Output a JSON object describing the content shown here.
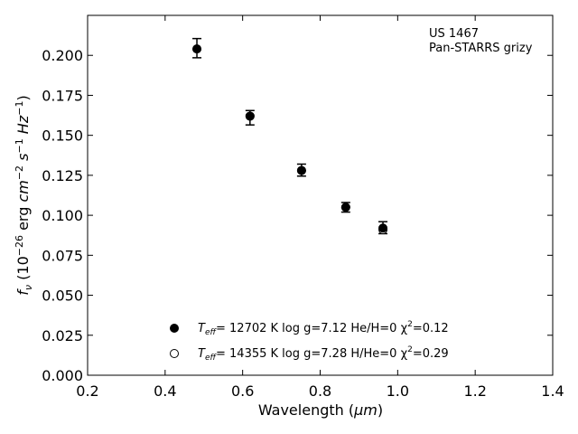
{
  "chart_data": {
    "type": "scatter",
    "xlabel_main": "Wavelength (",
    "xlabel_unit": "μm",
    "xlabel_close": ")",
    "ylabel": "f_ν (10^−26 erg cm^−2 s^−1 Hz^−1)",
    "xlim": [
      0.2,
      1.4
    ],
    "ylim": [
      0.0,
      0.225
    ],
    "x_ticks": [
      0.2,
      0.4,
      0.6,
      0.8,
      1.0,
      1.2,
      1.4
    ],
    "x_tick_labels": [
      "0.2",
      "0.4",
      "0.6",
      "0.8",
      "1.0",
      "1.2",
      "1.4"
    ],
    "y_ticks": [
      0.0,
      0.025,
      0.05,
      0.075,
      0.1,
      0.125,
      0.15,
      0.175,
      0.2
    ],
    "y_tick_labels": [
      "0.000",
      "0.025",
      "0.050",
      "0.075",
      "0.100",
      "0.125",
      "0.150",
      "0.175",
      "0.200"
    ],
    "grid": false,
    "annotation": [
      "US 1467",
      "Pan-STARRS grizy"
    ],
    "series": [
      {
        "marker": "filled",
        "x": [
          0.482,
          0.619,
          0.752,
          0.866,
          0.962
        ],
        "y": [
          0.204,
          0.162,
          0.128,
          0.105,
          0.092
        ],
        "yerr_low": [
          0.0055,
          0.0055,
          0.0035,
          0.003,
          0.0035
        ],
        "yerr_high": [
          0.0065,
          0.0035,
          0.004,
          0.003,
          0.004
        ]
      },
      {
        "marker": "open",
        "x": [
          0.482,
          0.619,
          0.752,
          0.866,
          0.962
        ],
        "y": [
          0.204,
          0.162,
          0.128,
          0.105,
          0.091
        ]
      }
    ],
    "legend": {
      "placement": "lower-center",
      "entries": [
        {
          "marker": "filled",
          "teff_label": "T",
          "teff_sub": "eff",
          "text": "= 12702 K  log g=7.12  He/H=0  χ",
          "chi_sup": "2",
          "chi_val": "=0.12"
        },
        {
          "marker": "open",
          "teff_label": "T",
          "teff_sub": "eff",
          "text": "= 14355 K  log g=7.28  H/He=0  χ",
          "chi_sup": "2",
          "chi_val": "=0.29"
        }
      ]
    }
  }
}
